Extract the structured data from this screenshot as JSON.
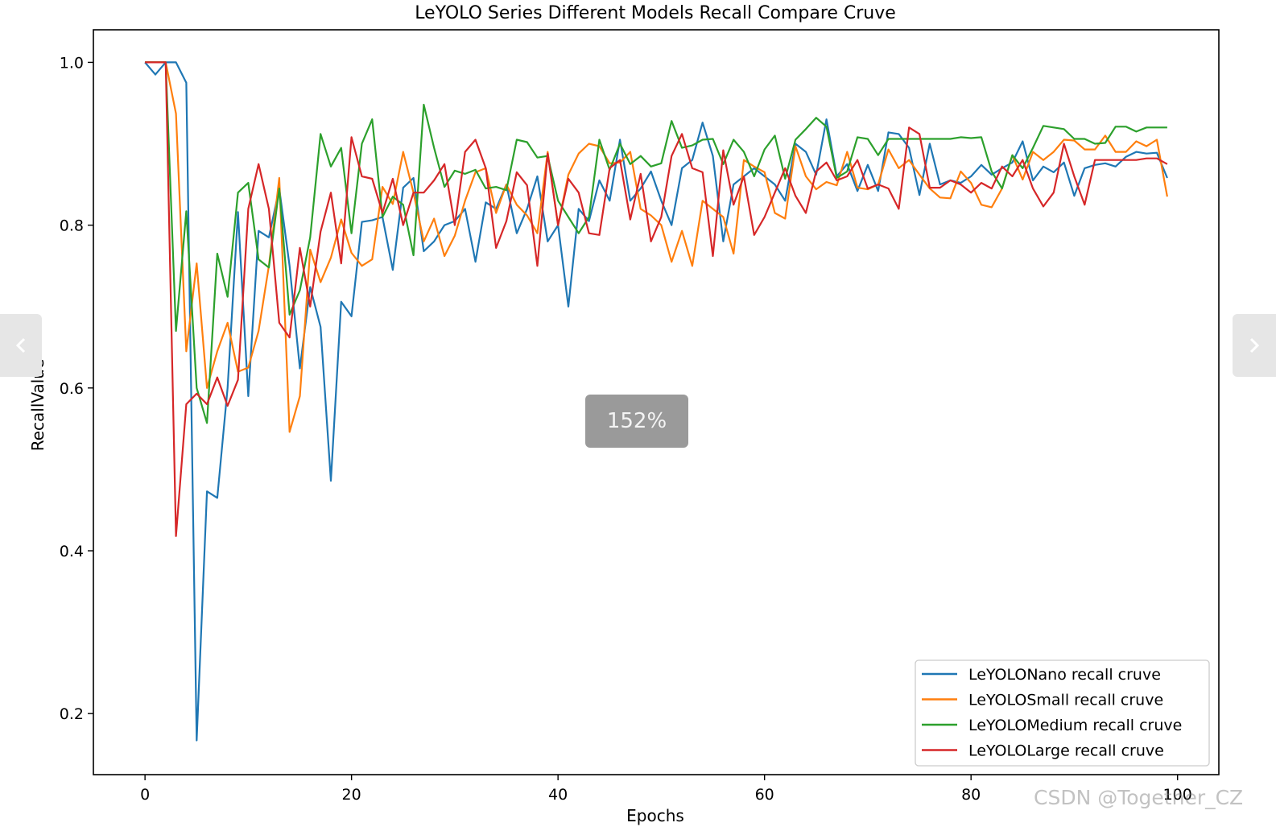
{
  "chart_data": {
    "type": "line",
    "title": "LeYOLO Series Different Models Recall Compare Cruve",
    "xlabel": "Epochs",
    "ylabel": "RecallValue",
    "xlim": [
      -5,
      104
    ],
    "ylim": [
      0.125,
      1.04
    ],
    "xticks": [
      0,
      20,
      40,
      60,
      80,
      100
    ],
    "xtick_labels": [
      "0",
      "20",
      "40",
      "60",
      "80",
      "100"
    ],
    "yticks": [
      0.2,
      0.4,
      0.6,
      0.8,
      1.0
    ],
    "ytick_labels": [
      "0.2",
      "0.4",
      "0.6",
      "0.8",
      "1.0"
    ],
    "grid": false,
    "legend_position": "lower-right",
    "x": [
      0,
      1,
      2,
      3,
      4,
      5,
      6,
      7,
      8,
      9,
      10,
      11,
      12,
      13,
      14,
      15,
      16,
      17,
      18,
      19,
      20,
      21,
      22,
      23,
      24,
      25,
      26,
      27,
      28,
      29,
      30,
      31,
      32,
      33,
      34,
      35,
      36,
      37,
      38,
      39,
      40,
      41,
      42,
      43,
      44,
      45,
      46,
      47,
      48,
      49,
      50,
      51,
      52,
      53,
      54,
      55,
      56,
      57,
      58,
      59,
      60,
      61,
      62,
      63,
      64,
      65,
      66,
      67,
      68,
      69,
      70,
      71,
      72,
      73,
      74,
      75,
      76,
      77,
      78,
      79,
      80,
      81,
      82,
      83,
      84,
      85,
      86,
      87,
      88,
      89,
      90,
      91,
      92,
      93,
      94,
      95,
      96,
      97,
      98,
      99
    ],
    "series": [
      {
        "name": "LeYOLONano recall cruve",
        "color": "#1f77b4",
        "values": [
          1.0,
          0.985,
          1.0,
          1.0,
          0.975,
          0.167,
          0.473,
          0.465,
          0.6,
          0.816,
          0.59,
          0.793,
          0.785,
          0.845,
          0.75,
          0.624,
          0.724,
          0.675,
          0.486,
          0.706,
          0.688,
          0.804,
          0.806,
          0.81,
          0.745,
          0.846,
          0.858,
          0.768,
          0.78,
          0.8,
          0.805,
          0.82,
          0.755,
          0.828,
          0.82,
          0.85,
          0.79,
          0.82,
          0.86,
          0.78,
          0.8,
          0.7,
          0.82,
          0.805,
          0.855,
          0.83,
          0.905,
          0.83,
          0.845,
          0.866,
          0.83,
          0.8,
          0.87,
          0.88,
          0.926,
          0.885,
          0.78,
          0.85,
          0.86,
          0.87,
          0.86,
          0.85,
          0.83,
          0.9,
          0.89,
          0.862,
          0.93,
          0.86,
          0.875,
          0.842,
          0.874,
          0.842,
          0.914,
          0.912,
          0.895,
          0.837,
          0.9,
          0.85,
          0.855,
          0.852,
          0.86,
          0.874,
          0.862,
          0.87,
          0.877,
          0.903,
          0.855,
          0.872,
          0.865,
          0.877,
          0.836,
          0.87,
          0.874,
          0.876,
          0.872,
          0.884,
          0.89,
          0.888,
          0.889,
          0.858
        ]
      },
      {
        "name": "LeYOLOSmall recall cruve",
        "color": "#ff7f0e",
        "values": [
          1.0,
          1.0,
          1.0,
          0.937,
          0.645,
          0.753,
          0.6,
          0.645,
          0.68,
          0.62,
          0.625,
          0.67,
          0.75,
          0.858,
          0.546,
          0.59,
          0.77,
          0.73,
          0.76,
          0.807,
          0.766,
          0.75,
          0.758,
          0.847,
          0.826,
          0.89,
          0.84,
          0.78,
          0.808,
          0.762,
          0.787,
          0.83,
          0.865,
          0.87,
          0.815,
          0.85,
          0.825,
          0.812,
          0.79,
          0.89,
          0.8,
          0.862,
          0.888,
          0.9,
          0.897,
          0.876,
          0.877,
          0.89,
          0.82,
          0.812,
          0.8,
          0.755,
          0.793,
          0.75,
          0.83,
          0.82,
          0.81,
          0.765,
          0.88,
          0.872,
          0.865,
          0.815,
          0.808,
          0.897,
          0.86,
          0.844,
          0.853,
          0.849,
          0.89,
          0.846,
          0.844,
          0.85,
          0.893,
          0.87,
          0.88,
          0.862,
          0.845,
          0.834,
          0.833,
          0.866,
          0.852,
          0.825,
          0.822,
          0.845,
          0.886,
          0.856,
          0.89,
          0.88,
          0.89,
          0.905,
          0.904,
          0.893,
          0.893,
          0.91,
          0.89,
          0.89,
          0.903,
          0.897,
          0.905,
          0.835
        ]
      },
      {
        "name": "LeYOLOMedium recall cruve",
        "color": "#2ca02c",
        "values": [
          1.0,
          1.0,
          1.0,
          0.67,
          0.817,
          0.6,
          0.557,
          0.765,
          0.712,
          0.84,
          0.852,
          0.758,
          0.748,
          0.845,
          0.69,
          0.72,
          0.785,
          0.912,
          0.872,
          0.895,
          0.79,
          0.9,
          0.93,
          0.81,
          0.835,
          0.825,
          0.763,
          0.948,
          0.895,
          0.847,
          0.867,
          0.863,
          0.868,
          0.845,
          0.847,
          0.843,
          0.905,
          0.902,
          0.883,
          0.885,
          0.83,
          0.81,
          0.79,
          0.81,
          0.905,
          0.868,
          0.9,
          0.875,
          0.885,
          0.872,
          0.876,
          0.928,
          0.895,
          0.898,
          0.905,
          0.906,
          0.875,
          0.905,
          0.89,
          0.86,
          0.893,
          0.91,
          0.857,
          0.905,
          0.918,
          0.932,
          0.921,
          0.858,
          0.866,
          0.908,
          0.906,
          0.886,
          0.906,
          0.906,
          0.906,
          0.906,
          0.906,
          0.906,
          0.906,
          0.908,
          0.907,
          0.908,
          0.866,
          0.845,
          0.886,
          0.87,
          0.895,
          0.922,
          0.92,
          0.918,
          0.906,
          0.906,
          0.9,
          0.901,
          0.921,
          0.921,
          0.915,
          0.92,
          0.92,
          0.92
        ]
      },
      {
        "name": "LeYOLOLarge recall cruve",
        "color": "#d62728",
        "values": [
          1.0,
          1.0,
          1.0,
          0.418,
          0.58,
          0.593,
          0.58,
          0.613,
          0.578,
          0.61,
          0.82,
          0.875,
          0.82,
          0.68,
          0.662,
          0.772,
          0.7,
          0.792,
          0.84,
          0.753,
          0.908,
          0.86,
          0.857,
          0.815,
          0.857,
          0.8,
          0.84,
          0.84,
          0.855,
          0.875,
          0.8,
          0.89,
          0.905,
          0.87,
          0.772,
          0.805,
          0.865,
          0.849,
          0.75,
          0.888,
          0.8,
          0.857,
          0.84,
          0.79,
          0.788,
          0.87,
          0.88,
          0.807,
          0.863,
          0.78,
          0.81,
          0.885,
          0.912,
          0.87,
          0.865,
          0.762,
          0.892,
          0.825,
          0.86,
          0.788,
          0.81,
          0.84,
          0.87,
          0.836,
          0.815,
          0.866,
          0.877,
          0.855,
          0.86,
          0.88,
          0.845,
          0.85,
          0.845,
          0.82,
          0.92,
          0.912,
          0.846,
          0.846,
          0.855,
          0.85,
          0.84,
          0.852,
          0.845,
          0.872,
          0.86,
          0.88,
          0.845,
          0.823,
          0.84,
          0.9,
          0.86,
          0.825,
          0.88,
          0.88,
          0.88,
          0.88,
          0.88,
          0.882,
          0.882,
          0.875
        ]
      }
    ]
  },
  "ui": {
    "zoom_level": "152%",
    "watermark": "CSDN @Together_CZ",
    "prev_icon": "chevron-left-icon",
    "next_icon": "chevron-right-icon"
  }
}
